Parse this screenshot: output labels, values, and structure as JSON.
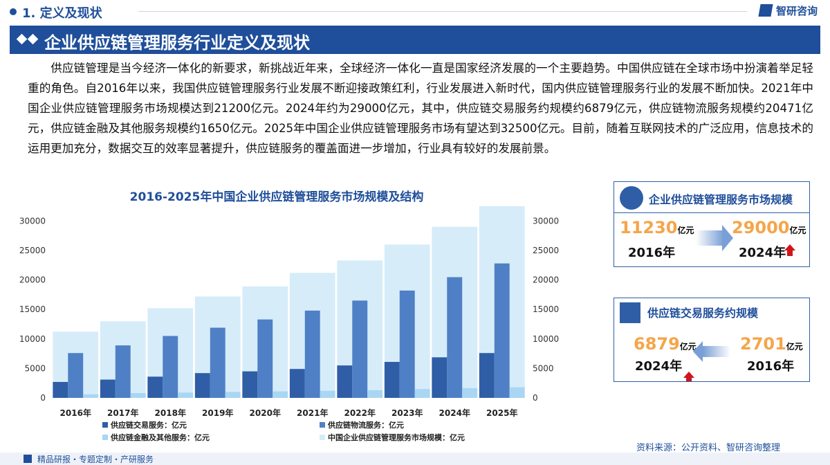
{
  "header": {
    "section": "1. 定义及现状",
    "logo": "智研咨询",
    "banner": "企业供应链管理服务行业定义及现状"
  },
  "paragraph": "供应链管理是当今经济一体化的新要求，新挑战近年来，全球经济一体化一直是国家经济发展的一个主要趋势。中国供应链在全球市场中扮演着举足轻重的角色。自2016年以来，我国供应链管理服务行业发展不断迎接政策红利，行业发展进入新时代，国内供应链管理服务行业的发展不断加快。2021年中国企业供应链管理服务市场规模达到21200亿元。2024年约为29000亿元，其中，供应链交易服务约规模约6879亿元，供应链物流服务规模约20471亿元，供应链金融及其他服务规模约1650亿元。2025年中国企业供应链管理服务市场有望达到32500亿元。目前，随着互联网技术的广泛应用，信息技术的运用更加充分，数据交互的效率显著提升，供应链服务的覆盖面进一步增加，行业具有较好的发展前景。",
  "chart_data": {
    "type": "bar",
    "title": "2016-2025年中国企业供应链管理服务市场规模及结构",
    "categories": [
      "2016年",
      "2017年",
      "2018年",
      "2019年",
      "2020年",
      "2021年",
      "2022年",
      "2023年",
      "2024年",
      "2025年"
    ],
    "series": [
      {
        "name": "供应链交易服务：亿元",
        "color": "#2f5ea6",
        "values": [
          2701,
          3100,
          3600,
          4200,
          4500,
          4900,
          5500,
          6100,
          6879,
          7600
        ]
      },
      {
        "name": "供应链物流服务：亿元",
        "color": "#4f80c6",
        "values": [
          7600,
          8900,
          10500,
          11900,
          13300,
          14800,
          16500,
          18200,
          20471,
          22800
        ]
      },
      {
        "name": "供应链金融及其他服务：亿元",
        "color": "#a9d6f2",
        "values": [
          600,
          800,
          900,
          1000,
          1100,
          1200,
          1300,
          1500,
          1650,
          1800
        ]
      },
      {
        "name": "中国企业供应链管理服务市场规模：亿元",
        "color": "#d6ecf9",
        "values": [
          11230,
          13000,
          15200,
          17200,
          18900,
          21200,
          23300,
          26000,
          29000,
          32500
        ]
      }
    ],
    "ylim": [
      0,
      32500
    ],
    "yticks": [
      0,
      5000,
      10000,
      15000,
      20000,
      25000,
      30000
    ],
    "y2lim": [
      0,
      32500
    ],
    "y2ticks": [
      0,
      5000,
      10000,
      15000,
      20000,
      25000,
      30000
    ],
    "grid": false
  },
  "cards": [
    {
      "title": "企业供应链管理服务市场规模",
      "left": {
        "value": "11230",
        "unit": "亿元",
        "year": "2016年"
      },
      "right": {
        "value": "29000",
        "unit": "亿元",
        "year": "2024年"
      }
    },
    {
      "title": "供应链交易服务约规模",
      "left": {
        "value": "6879",
        "unit": "亿元",
        "year": "2024年"
      },
      "right": {
        "value": "2701",
        "unit": "亿元",
        "year": "2016年"
      }
    }
  ],
  "footer": {
    "source": "资料来源：公开资料、智研咨询整理",
    "tagline": "精品研报・专题定制・产研服务"
  }
}
